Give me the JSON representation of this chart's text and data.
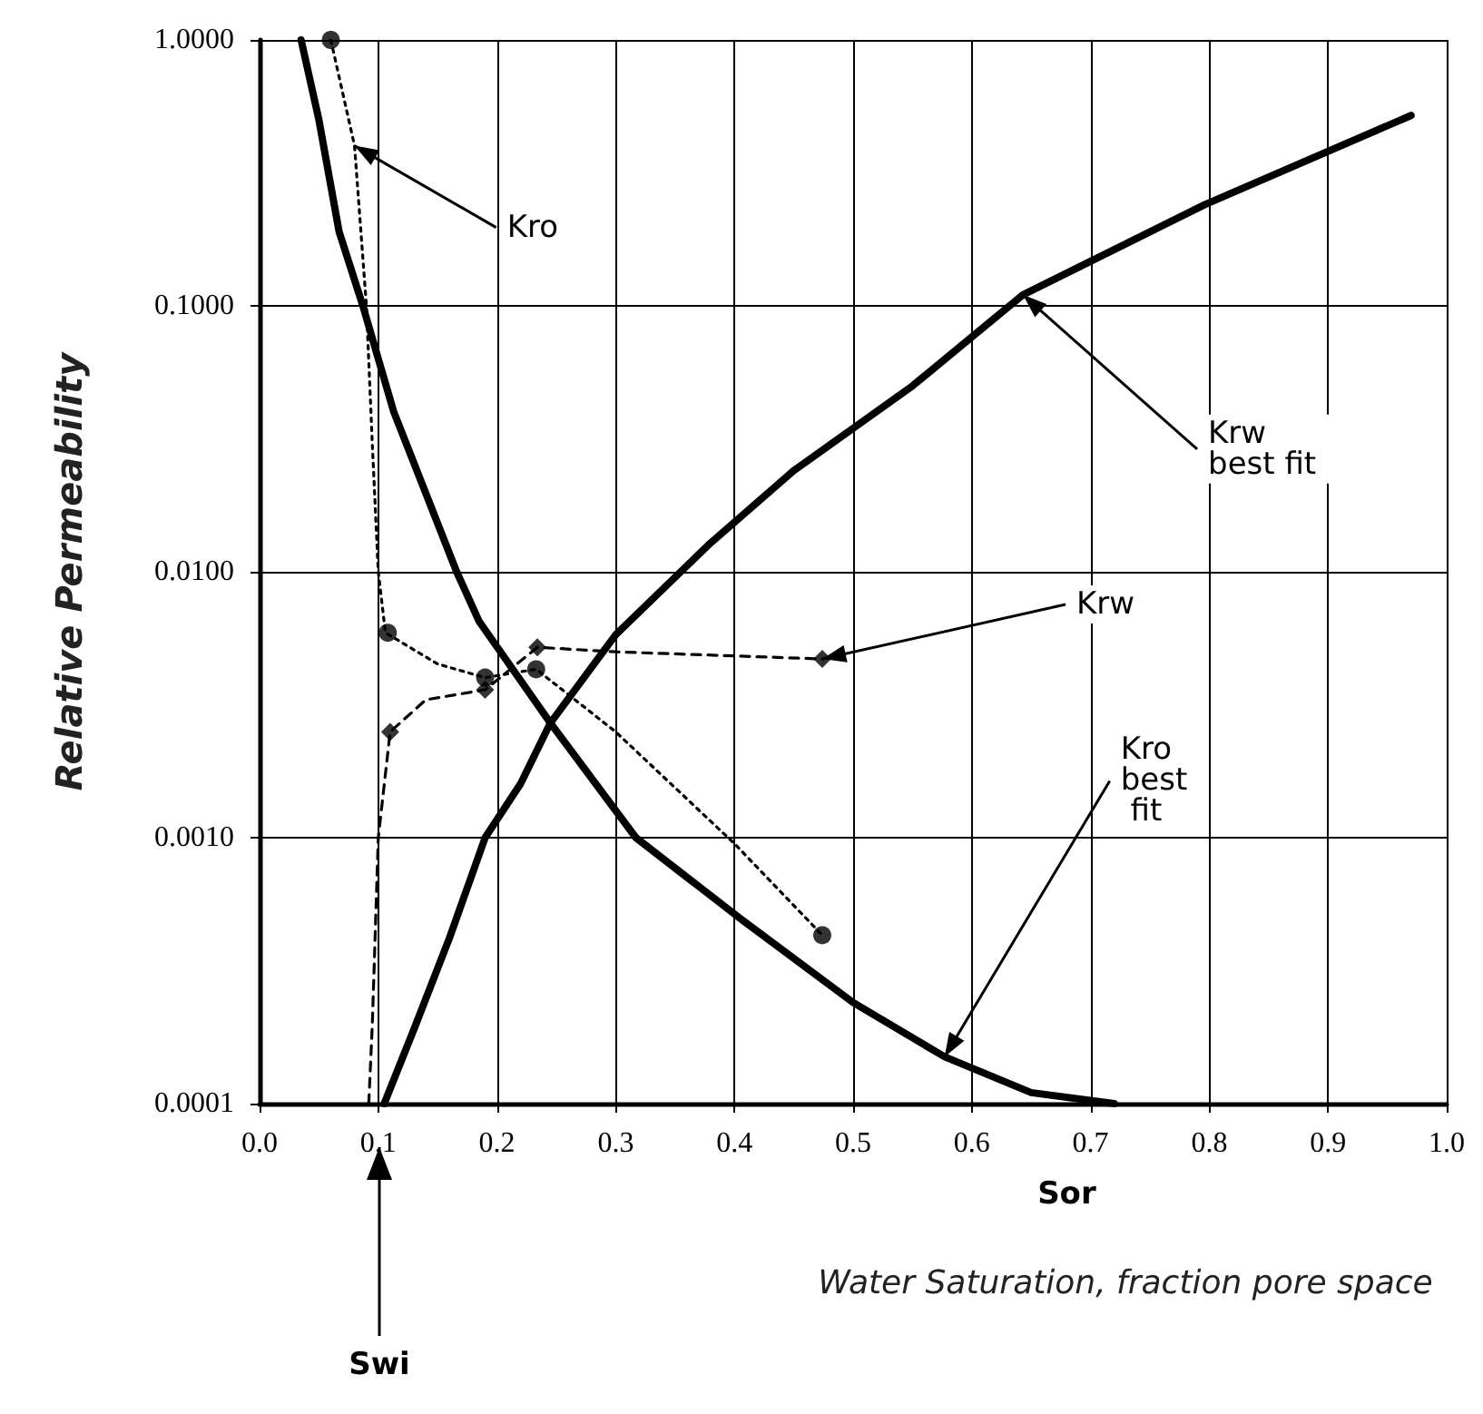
{
  "chart_data": {
    "type": "line",
    "xlabel": "Water Saturation, fraction pore space",
    "ylabel": "Relative Permeability",
    "xlim": [
      0,
      1
    ],
    "xticks": [
      {
        "value": 0,
        "label": "0.0"
      },
      {
        "value": 0.1,
        "label": "0.1"
      },
      {
        "value": 0.2,
        "label": "0.2"
      },
      {
        "value": 0.3,
        "label": "0.3"
      },
      {
        "value": 0.4,
        "label": "0.4"
      },
      {
        "value": 0.5,
        "label": "0.5"
      },
      {
        "value": 0.6,
        "label": "0.6"
      },
      {
        "value": 0.7,
        "label": "0.7"
      },
      {
        "value": 0.8,
        "label": "0.8"
      },
      {
        "value": 0.9,
        "label": "0.9"
      },
      {
        "value": 1,
        "label": "1.0"
      }
    ],
    "ylim": [
      0.0001,
      1
    ],
    "yticks": [
      {
        "value": 0.0001,
        "label": "0.0001"
      },
      {
        "value": 0.001,
        "label": "0.0010"
      },
      {
        "value": 0.01,
        "label": "0.0100"
      },
      {
        "value": 0.1,
        "label": "0.1000"
      },
      {
        "value": 1,
        "label": "1.0000"
      }
    ],
    "log": "y",
    "grid": true,
    "series": [
      {
        "color": "#000000",
        "line_style": "solid",
        "marker": "none",
        "x": [
          0.035,
          0.05,
          0.067,
          0.087,
          0.113,
          0.166,
          0.185,
          0.245,
          0.317,
          0.404,
          0.5,
          0.577,
          0.65,
          0.72
        ],
        "values": [
          1,
          0.5,
          0.19,
          0.1,
          0.04,
          0.01,
          0.0065,
          0.0027,
          0.001,
          0.0005,
          0.00024,
          0.00015,
          0.00011,
          0.0001
        ]
      },
      {
        "color": "#000000",
        "line_style": "solid",
        "marker": "none",
        "x": [
          0.105,
          0.13,
          0.16,
          0.19,
          0.22,
          0.245,
          0.3,
          0.378,
          0.45,
          0.55,
          0.643,
          0.796,
          0.97
        ],
        "values": [
          0.0001,
          0.00019,
          0.00042,
          0.001,
          0.0016,
          0.0027,
          0.0058,
          0.0126,
          0.024,
          0.05,
          0.11,
          0.24,
          0.52
        ]
      },
      {
        "color": "#000000",
        "line_style": "dotted",
        "marker": "none",
        "x": [
          0.06,
          0.08,
          0.09,
          0.095,
          0.1,
          0.106,
          0.15,
          0.19,
          0.233,
          0.3,
          0.4,
          0.474
        ],
        "values": [
          1,
          0.4,
          0.1,
          0.03,
          0.01,
          0.0059,
          0.0045,
          0.004,
          0.0043,
          0.0025,
          0.00095,
          0.00043
        ]
      },
      {
        "color": "#000000",
        "line_style": "dashed",
        "marker": "none",
        "x": [
          0.092,
          0.095,
          0.1,
          0.11,
          0.14,
          0.19,
          0.234,
          0.3,
          0.474
        ],
        "values": [
          0.0001,
          0.0002,
          0.001,
          0.0025,
          0.0033,
          0.0036,
          0.0052,
          0.005,
          0.0047
        ]
      },
      {
        "type": "scatter",
        "color": "#000000",
        "marker": "circle",
        "x": [
          0.06,
          0.108,
          0.19,
          0.233,
          0.474
        ],
        "values": [
          1,
          0.0059,
          0.004,
          0.0043,
          0.00043
        ]
      },
      {
        "type": "scatter",
        "color": "#000000",
        "marker": "diamond",
        "x": [
          0.11,
          0.19,
          0.234,
          0.474
        ],
        "values": [
          0.0025,
          0.0036,
          0.0052,
          0.0047
        ]
      }
    ],
    "annotations": [
      {
        "text": "Kro",
        "x": 0.08,
        "y": 0.4
      },
      {
        "text": "Krw best fit",
        "x": 0.643,
        "y": 0.11
      },
      {
        "text": "Krw",
        "x": 0.474,
        "y": 0.0047
      },
      {
        "text": "Kro best fit",
        "x": 0.577,
        "y": 0.00015
      },
      "Swi",
      {
        "text": "Sor",
        "x": 0.68,
        "y": 0.0001
      }
    ]
  }
}
